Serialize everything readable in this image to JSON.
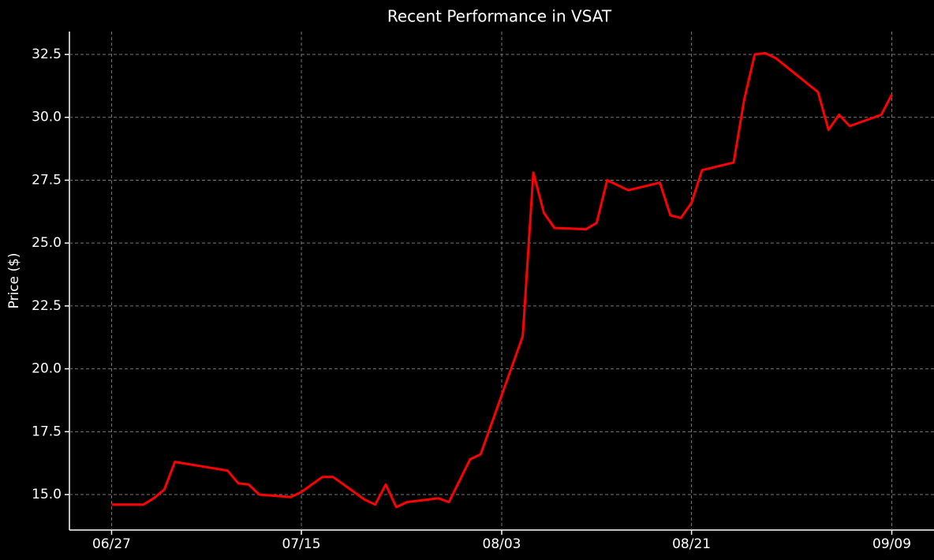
{
  "chart_data": {
    "type": "line",
    "title": "Recent Performance in VSAT",
    "y_label": "Price ($)",
    "x": [
      "06/27",
      "06/30",
      "07/01",
      "07/02",
      "07/03",
      "07/08",
      "07/09",
      "07/10",
      "07/11",
      "07/14",
      "07/15",
      "07/17",
      "07/18",
      "07/21",
      "07/22",
      "07/23",
      "07/24",
      "07/25",
      "07/28",
      "07/29",
      "07/31",
      "08/01",
      "08/05",
      "08/06",
      "08/07",
      "08/08",
      "08/11",
      "08/12",
      "08/13",
      "08/15",
      "08/18",
      "08/19",
      "08/20",
      "08/21",
      "08/22",
      "08/25",
      "08/26",
      "08/27",
      "08/28",
      "08/29",
      "09/02",
      "09/03",
      "09/04",
      "09/05",
      "09/08",
      "09/09"
    ],
    "series": [
      {
        "name": "VSAT",
        "color": "#ff0000",
        "values": [
          14.6,
          14.6,
          14.85,
          15.2,
          16.3,
          15.95,
          15.45,
          15.4,
          15.0,
          14.9,
          15.1,
          15.7,
          15.7,
          14.8,
          14.6,
          15.4,
          14.5,
          14.7,
          14.85,
          14.7,
          16.4,
          16.6,
          21.3,
          27.8,
          26.2,
          25.6,
          25.55,
          25.8,
          27.5,
          27.1,
          27.4,
          26.1,
          26.0,
          26.6,
          27.9,
          28.2,
          30.7,
          32.5,
          32.55,
          32.35,
          31.0,
          29.5,
          30.1,
          29.65,
          30.1,
          30.9
        ]
      }
    ],
    "xlim": [
      "06/23",
      "09/13"
    ],
    "xticks": [
      "06/27",
      "07/15",
      "08/03",
      "08/21",
      "09/09"
    ],
    "ylim": [
      13.59,
      33.41
    ],
    "yticks": [
      {
        "value": 15,
        "label": "15.0"
      },
      {
        "value": 17.5,
        "label": "17.5"
      },
      {
        "value": 20,
        "label": "20.0"
      },
      {
        "value": 22.5,
        "label": "22.5"
      },
      {
        "value": 25,
        "label": "25.0"
      },
      {
        "value": 27.5,
        "label": "27.5"
      },
      {
        "value": 30,
        "label": "30.0"
      },
      {
        "value": 32.5,
        "label": "32.5"
      }
    ],
    "grid": true
  }
}
